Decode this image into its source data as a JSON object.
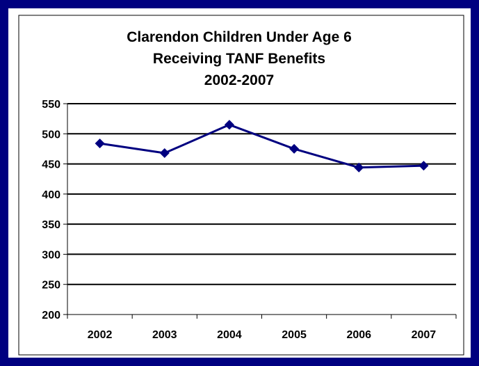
{
  "chart_data": {
    "type": "line",
    "title_lines": [
      "Clarendon Children Under Age 6",
      "Receiving TANF Benefits",
      "2002-2007"
    ],
    "xlabel": "",
    "ylabel": "",
    "categories": [
      "2002",
      "2003",
      "2004",
      "2005",
      "2006",
      "2007"
    ],
    "series": [
      {
        "values": [
          484,
          468,
          515,
          475,
          444,
          447
        ],
        "color": "#000080"
      }
    ],
    "ylim": [
      200,
      550
    ],
    "yticks": [
      200,
      250,
      300,
      350,
      400,
      450,
      500,
      550
    ],
    "grid": true,
    "legend": "none",
    "frame_color": "#000080"
  }
}
